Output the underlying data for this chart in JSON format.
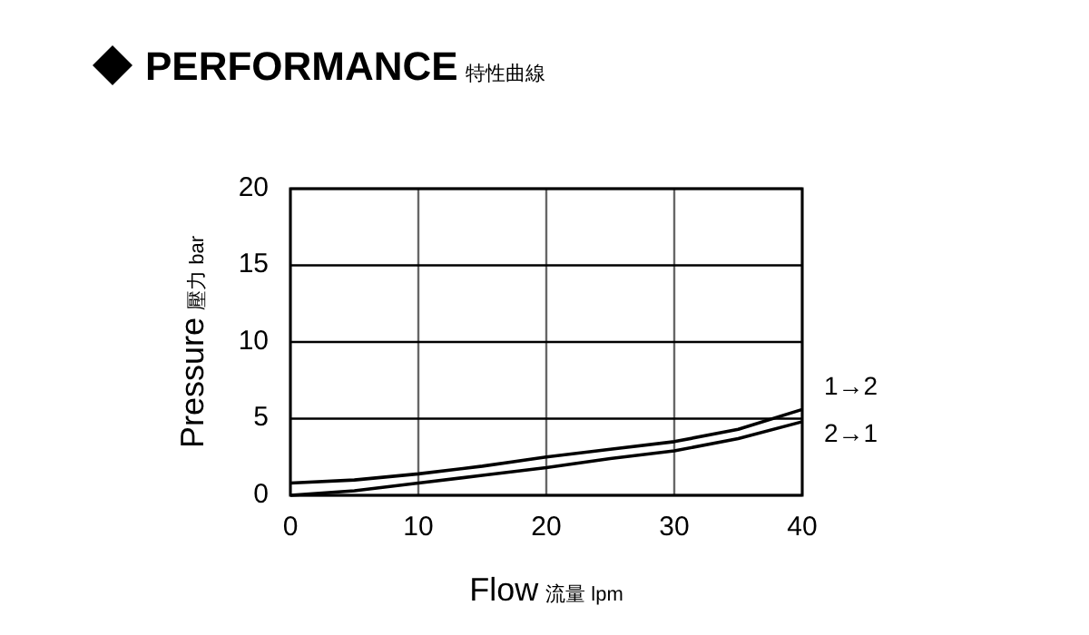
{
  "chart_data": {
    "type": "line",
    "title": "PERFORMANCE 特性曲線",
    "xlabel": "Flow 流量 lpm",
    "ylabel": "Pressure 壓力 bar",
    "x": [
      0,
      5,
      10,
      15,
      20,
      25,
      30,
      35,
      40
    ],
    "series": [
      {
        "name": "1→2",
        "color": "#000000",
        "values": [
          0.8,
          1.0,
          1.4,
          1.9,
          2.5,
          3.0,
          3.5,
          4.3,
          5.6
        ]
      },
      {
        "name": "2→1",
        "color": "#000000",
        "values": [
          0.0,
          0.3,
          0.8,
          1.3,
          1.8,
          2.4,
          2.9,
          3.7,
          4.8
        ]
      }
    ],
    "xlim": [
      0,
      40
    ],
    "xticks": [
      0,
      10,
      20,
      30,
      40
    ],
    "ylim": [
      0,
      20
    ],
    "yticks": [
      0,
      5,
      10,
      15,
      20
    ],
    "grid": true,
    "legend": false,
    "line_style": "solid"
  }
}
